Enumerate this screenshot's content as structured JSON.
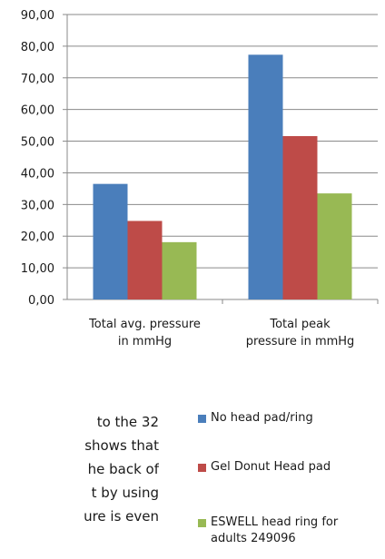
{
  "chart_data": {
    "type": "bar",
    "categories": [
      "Total avg. pressure\nin mmHg",
      "Total peak\npressure  in mmHg"
    ],
    "series": [
      {
        "name": "No head pad/ring",
        "color": "#4a7ebb",
        "values": [
          36.5,
          77.3
        ]
      },
      {
        "name": "Gel Donut Head pad",
        "color": "#be4b48",
        "values": [
          24.8,
          51.6
        ]
      },
      {
        "name": "ESWELL head ring for adults 249096",
        "color": "#98b954",
        "values": [
          18.1,
          33.5
        ]
      }
    ],
    "ylim": [
      0,
      90
    ],
    "yticks": [
      "0,00",
      "10,00",
      "20,00",
      "30,00",
      "40,00",
      "50,00",
      "60,00",
      "70,00",
      "80,00",
      "90,00"
    ],
    "grid": true,
    "legend_position": "bottom-right"
  },
  "body_text": {
    "lines": [
      "to the 32",
      "shows that",
      "he back of",
      "t by using",
      "ure is even"
    ]
  }
}
